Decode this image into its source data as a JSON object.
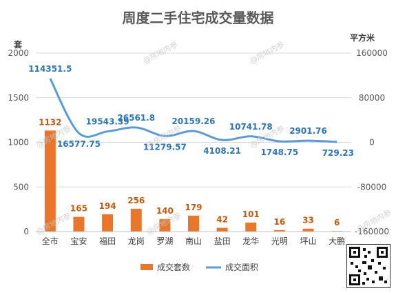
{
  "chart_data": {
    "type": "bar",
    "title": "周度二手住宅成交量数据",
    "left_axis_unit": "套",
    "right_axis_unit": "平方米",
    "categories": [
      "全市",
      "宝安",
      "福田",
      "龙岗",
      "罗湖",
      "南山",
      "盐田",
      "龙华",
      "光明",
      "坪山",
      "大鹏"
    ],
    "series": [
      {
        "name": "成交套数",
        "type": "bar",
        "axis": "left",
        "color": "#E8762B",
        "values": [
          1132,
          165,
          194,
          256,
          140,
          179,
          42,
          101,
          16,
          33,
          6
        ],
        "labels": [
          "1132",
          "165",
          "194",
          "256",
          "140",
          "179",
          "42",
          "101",
          "16",
          "33",
          "6"
        ]
      },
      {
        "name": "成交面积",
        "type": "line",
        "axis": "right",
        "color": "#5B9BD5",
        "values": [
          114351.5,
          16577.75,
          19543.39,
          26561.8,
          11279.57,
          20159.26,
          4108.21,
          10741.78,
          1748.75,
          2901.76,
          729.23
        ],
        "labels": [
          "114351.5",
          "16577.75",
          "19543.39",
          "26561.8",
          "11279.57",
          "20159.26",
          "4108.21",
          "10741.78",
          "1748.75",
          "2901.76",
          "729.23"
        ]
      }
    ],
    "left_axis": {
      "ylim": [
        0,
        2000
      ],
      "ticks": [
        "0",
        "500",
        "1000",
        "1500",
        "2000"
      ]
    },
    "right_axis": {
      "ylim": [
        -160000,
        160000
      ],
      "ticks": [
        "-160000",
        "-80000",
        "0",
        "80000",
        "160000"
      ]
    },
    "grid": true,
    "legend_position": "bottom"
  },
  "watermark_text": "@房地内参"
}
